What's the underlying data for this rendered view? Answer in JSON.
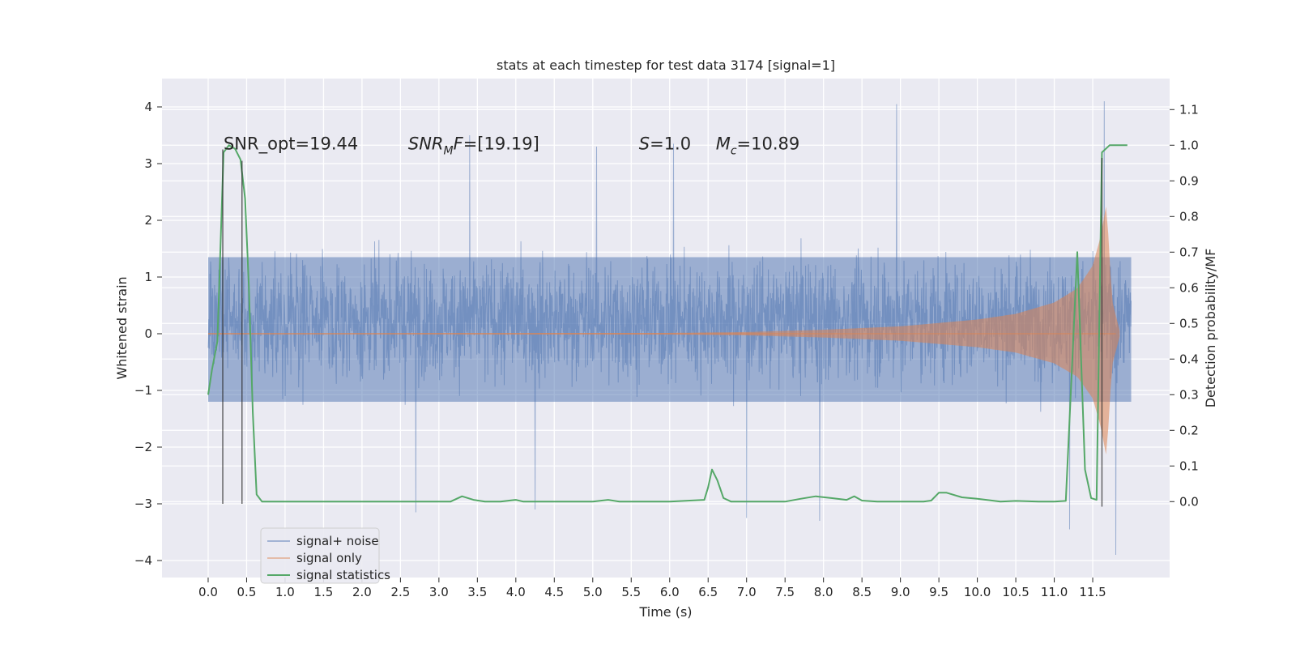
{
  "chart_data": {
    "type": "line",
    "title": "stats at each timestep for test data 3174 [signal=1]",
    "xlabel": "Time (s)",
    "ylabel": "Whitened strain",
    "ylabel_right": "Detection probability/MF",
    "xlim": [
      -0.6,
      12.5
    ],
    "ylim": [
      -4.3,
      4.5
    ],
    "ylim_right": [
      -0.213,
      1.187
    ],
    "x_ticks": [
      0.0,
      0.5,
      1.0,
      1.5,
      2.0,
      2.5,
      3.0,
      3.5,
      4.0,
      4.5,
      5.0,
      5.5,
      6.0,
      6.5,
      7.0,
      7.5,
      8.0,
      8.5,
      9.0,
      9.5,
      10.0,
      10.5,
      11.0,
      11.5
    ],
    "x_tick_labels": [
      "0.0",
      "0.5",
      "1.0",
      "1.5",
      "2.0",
      "2.5",
      "3.0",
      "3.5",
      "4.0",
      "4.5",
      "5.0",
      "5.5",
      "6.0",
      "6.5",
      "7.0",
      "7.5",
      "8.0",
      "8.5",
      "9.0",
      "9.5",
      "10.0",
      "10.5",
      "11.0",
      "11.5"
    ],
    "y_ticks": [
      -4,
      -3,
      -2,
      -1,
      0,
      1,
      2,
      3,
      4
    ],
    "y_tick_labels": [
      "−4",
      "−3",
      "−2",
      "−1",
      "0",
      "1",
      "2",
      "3",
      "4"
    ],
    "y_ticks_right": [
      0.0,
      0.1,
      0.2,
      0.3,
      0.4,
      0.5,
      0.6,
      0.7,
      0.8,
      0.9,
      1.0,
      1.1
    ],
    "y_tick_labels_right": [
      "0.0",
      "0.1",
      "0.2",
      "0.3",
      "0.4",
      "0.5",
      "0.6",
      "0.7",
      "0.8",
      "0.9",
      "1.0",
      "1.1"
    ],
    "grid": true,
    "legend_position": "lower-left",
    "series": [
      {
        "name": "signal+ noise",
        "color": "#4c72b0",
        "envelope": {
          "t": [
            0.0,
            12.0
          ],
          "typical_amplitude": 1.3,
          "max": 4.1,
          "min": -3.9
        },
        "peaks": [
          {
            "t": 3.4,
            "v": 3.5
          },
          {
            "t": 5.05,
            "v": 3.3
          },
          {
            "t": 6.05,
            "v": 3.35
          },
          {
            "t": 8.95,
            "v": 4.05
          },
          {
            "t": 11.65,
            "v": 4.1
          },
          {
            "t": 2.7,
            "v": -3.15
          },
          {
            "t": 4.25,
            "v": -3.1
          },
          {
            "t": 7.0,
            "v": -3.25
          },
          {
            "t": 7.95,
            "v": -3.3
          },
          {
            "t": 11.2,
            "v": -3.45
          },
          {
            "t": 11.8,
            "v": -3.9
          }
        ]
      },
      {
        "name": "signal only",
        "color": "#dd8452",
        "envelope_amplitude": [
          [
            0.0,
            0.01
          ],
          [
            6.0,
            0.015
          ],
          [
            7.0,
            0.03
          ],
          [
            8.0,
            0.07
          ],
          [
            9.0,
            0.13
          ],
          [
            10.0,
            0.25
          ],
          [
            10.5,
            0.35
          ],
          [
            11.0,
            0.55
          ],
          [
            11.3,
            0.8
          ],
          [
            11.5,
            1.2
          ],
          [
            11.6,
            1.7
          ],
          [
            11.68,
            2.3
          ],
          [
            11.75,
            0.6
          ],
          [
            11.85,
            0.05
          ]
        ]
      },
      {
        "name": "signal statistics",
        "color": "#55a868",
        "axis": "right",
        "x": [
          0.0,
          0.05,
          0.12,
          0.2,
          0.27,
          0.35,
          0.42,
          0.48,
          0.53,
          0.58,
          0.63,
          0.7,
          1.0,
          2.0,
          3.0,
          3.15,
          3.3,
          3.45,
          3.6,
          3.8,
          4.0,
          4.1,
          4.2,
          4.5,
          5.0,
          5.2,
          5.35,
          5.5,
          6.0,
          6.45,
          6.5,
          6.55,
          6.62,
          6.7,
          6.8,
          7.0,
          7.5,
          7.7,
          7.9,
          8.1,
          8.3,
          8.4,
          8.5,
          8.7,
          9.0,
          9.3,
          9.4,
          9.5,
          9.6,
          9.8,
          10.0,
          10.3,
          10.5,
          10.8,
          11.0,
          11.15,
          11.3,
          11.4,
          11.48,
          11.55,
          11.62,
          11.72,
          11.8,
          11.95
        ],
        "y": [
          0.3,
          0.37,
          0.45,
          0.98,
          1.0,
          0.99,
          0.96,
          0.85,
          0.6,
          0.25,
          0.02,
          0.0,
          0.0,
          0.0,
          0.0,
          0.0,
          0.015,
          0.005,
          0.0,
          0.0,
          0.005,
          0.0,
          0.0,
          0.0,
          0.0,
          0.005,
          0.0,
          0.0,
          0.0,
          0.005,
          0.04,
          0.09,
          0.06,
          0.01,
          0.0,
          0.0,
          0.0,
          0.008,
          0.015,
          0.01,
          0.005,
          0.015,
          0.003,
          0.0,
          0.0,
          0.0,
          0.003,
          0.025,
          0.025,
          0.012,
          0.008,
          0.0,
          0.002,
          0.0,
          0.0,
          0.002,
          0.7,
          0.09,
          0.01,
          0.005,
          0.98,
          1.0,
          1.0,
          1.0
        ]
      }
    ],
    "vertical_lines": [
      {
        "x": 0.19,
        "y_top": 3.25,
        "y_bottom": -3.0
      },
      {
        "x": 0.44,
        "y_top": 3.05,
        "y_bottom": -3.0
      },
      {
        "x": 11.62,
        "y_top": 3.1,
        "y_bottom": -3.05
      }
    ],
    "annotations": [
      {
        "text": "SNR_opt=19.44",
        "x": 0.2,
        "y": 3.25,
        "style": "plain"
      },
      {
        "base": "SNR",
        "sub": "M",
        "rest": "F=[19.19]",
        "x": 2.6,
        "y": 3.25,
        "style": "math"
      },
      {
        "base": "S",
        "sub": "",
        "rest": "=1.0",
        "x": 5.6,
        "y": 3.25,
        "style": "math"
      },
      {
        "base": "M",
        "sub": "c",
        "rest": "=10.89",
        "x": 6.6,
        "y": 3.25,
        "style": "math"
      }
    ]
  }
}
